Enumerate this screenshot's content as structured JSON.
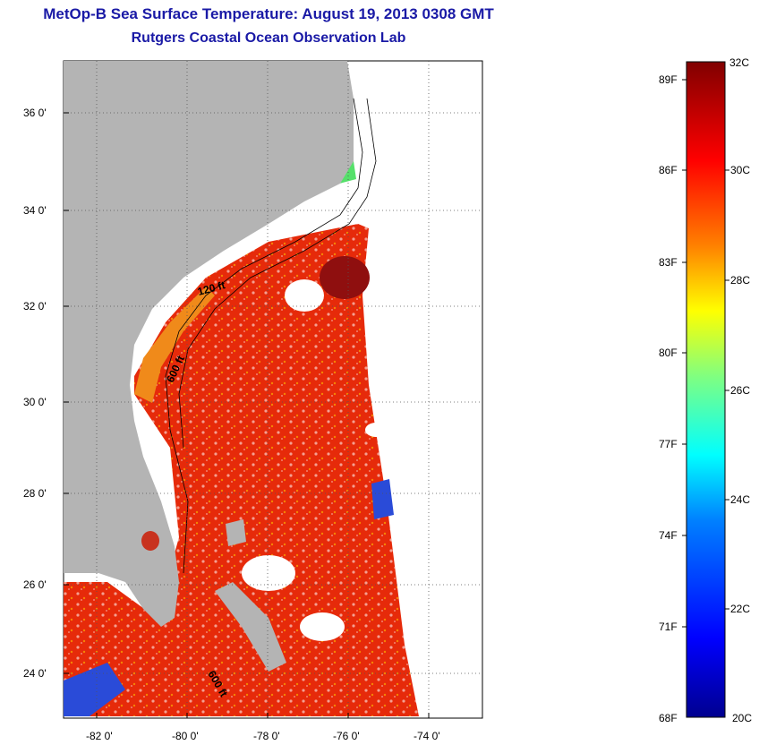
{
  "title": "MetOp-B Sea Surface Temperature:  August 19, 2013 0308 GMT",
  "subtitle": "Rutgers Coastal Ocean Observation Lab",
  "map": {
    "lon_ticks": [
      "-82 0'",
      "-80 0'",
      "-78 0'",
      "-76 0'",
      "-74 0'"
    ],
    "lat_ticks": [
      "36 0'",
      "34 0'",
      "32 0'",
      "30 0'",
      "28 0'",
      "26 0'",
      "24 0'"
    ],
    "contour_labels": [
      "120 ft",
      "600 ft",
      "600 ft"
    ],
    "colors": {
      "land": "#b4b4b4",
      "no_data": "#ffffff",
      "warm": "#e62a0a",
      "cool": "#2a4bd8"
    }
  },
  "colorbar": {
    "fahrenheit_labels": [
      "89F",
      "86F",
      "83F",
      "80F",
      "77F",
      "74F",
      "71F",
      "68F"
    ],
    "celsius_labels": [
      "32C",
      "30C",
      "28C",
      "26C",
      "24C",
      "22C",
      "20C"
    ],
    "range_c": [
      20,
      32
    ]
  }
}
